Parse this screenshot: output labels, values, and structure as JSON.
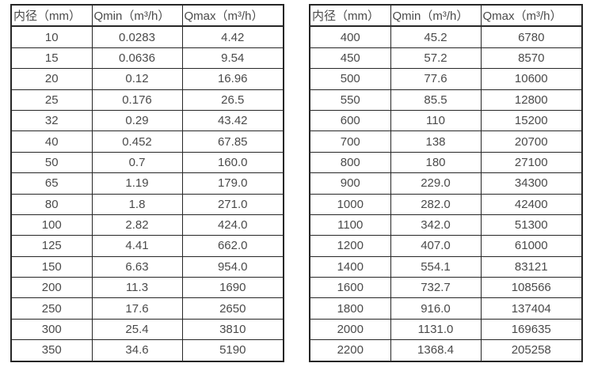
{
  "page": {
    "background_color": "#ffffff",
    "text_color": "#4a4a4a",
    "border_color": "#262626"
  },
  "tables": [
    {
      "name": "flow-range-table-small-diameters",
      "headers": [
        "内径（mm）",
        "Qmin（m³/h）",
        "Qmax（m³/h）"
      ],
      "rows": [
        [
          "10",
          "0.0283",
          "4.42"
        ],
        [
          "15",
          "0.0636",
          "9.54"
        ],
        [
          "20",
          "0.12",
          "16.96"
        ],
        [
          "25",
          "0.176",
          "26.5"
        ],
        [
          "32",
          "0.29",
          "43.42"
        ],
        [
          "40",
          "0.452",
          "67.85"
        ],
        [
          "50",
          "0.7",
          "160.0"
        ],
        [
          "65",
          "1.19",
          "179.0"
        ],
        [
          "80",
          "1.8",
          "271.0"
        ],
        [
          "100",
          "2.82",
          "424.0"
        ],
        [
          "125",
          "4.41",
          "662.0"
        ],
        [
          "150",
          "6.63",
          "954.0"
        ],
        [
          "200",
          "11.3",
          "1690"
        ],
        [
          "250",
          "17.6",
          "2650"
        ],
        [
          "300",
          "25.4",
          "3810"
        ],
        [
          "350",
          "34.6",
          "5190"
        ]
      ]
    },
    {
      "name": "flow-range-table-large-diameters",
      "headers": [
        "内径（mm）",
        "Qmin（m³/h）",
        "Qmax（m³/h）"
      ],
      "rows": [
        [
          "400",
          "45.2",
          "6780"
        ],
        [
          "450",
          "57.2",
          "8570"
        ],
        [
          "500",
          "77.6",
          "10600"
        ],
        [
          "550",
          "85.5",
          "12800"
        ],
        [
          "600",
          "110",
          "15200"
        ],
        [
          "700",
          "138",
          "20700"
        ],
        [
          "800",
          "180",
          "27100"
        ],
        [
          "900",
          "229.0",
          "34300"
        ],
        [
          "1000",
          "282.0",
          "42400"
        ],
        [
          "1100",
          "342.0",
          "51300"
        ],
        [
          "1200",
          "407.0",
          "61000"
        ],
        [
          "1400",
          "554.1",
          "83121"
        ],
        [
          "1600",
          "732.7",
          "108566"
        ],
        [
          "1800",
          "916.0",
          "137404"
        ],
        [
          "2000",
          "1131.0",
          "169635"
        ],
        [
          "2200",
          "1368.4",
          "205258"
        ]
      ]
    }
  ],
  "cell_names": [
    "diameter-cell",
    "qmin-cell",
    "qmax-cell"
  ]
}
